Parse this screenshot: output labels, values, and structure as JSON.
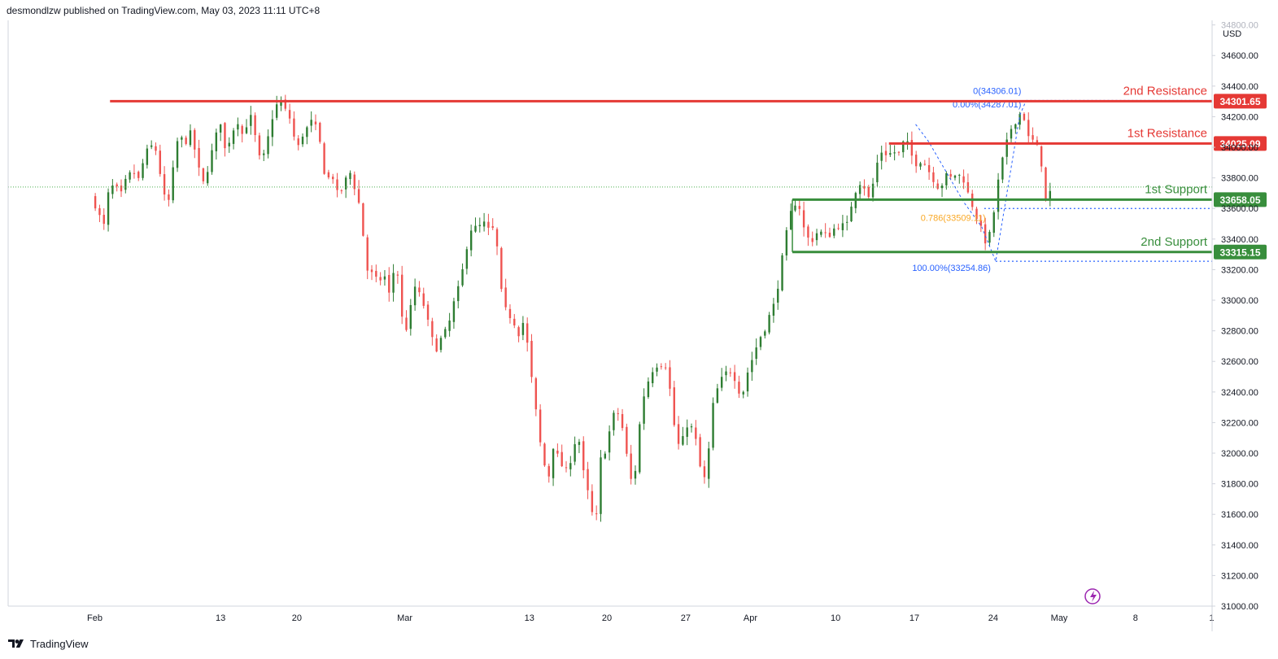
{
  "header": {
    "text": "desmondlzw published on TradingView.com, May 03, 2023 11:11 UTC+8"
  },
  "footer": {
    "brand": "TradingView"
  },
  "colors": {
    "up": "#2e7d32",
    "down": "#ef5350",
    "resistance": "#e53935",
    "support": "#388e3c",
    "fib": "#2962ff",
    "fib_mid": "#f9a825",
    "grid_dot": "#4caf50",
    "axis": "#131722"
  },
  "chart_data": {
    "type": "candlestick",
    "currency": "USD",
    "y_ticks": [
      31000,
      31200,
      31400,
      31600,
      31800,
      32000,
      32200,
      32400,
      32600,
      32800,
      33000,
      33200,
      33400,
      33600,
      33800,
      34000,
      34200,
      34400,
      34600,
      34800
    ],
    "ylim": [
      31000,
      34830
    ],
    "x_ticks": [
      "Feb",
      "13",
      "20",
      "Mar",
      "13",
      "20",
      "27",
      "Apr",
      "10",
      "17",
      "24",
      "May",
      "8",
      "1"
    ],
    "levels": [
      {
        "label": "2nd Resistance",
        "value": 34301.65,
        "price_label": "34301.65",
        "kind": "resistance"
      },
      {
        "label": "1st Resistance",
        "value": 34025.09,
        "price_label": "34025.09",
        "kind": "resistance"
      },
      {
        "label": "1st Support",
        "value": 33658.05,
        "price_label": "33658.05",
        "kind": "support"
      },
      {
        "label": "2nd Support",
        "value": 33315.15,
        "price_label": "33315.15",
        "kind": "support"
      }
    ],
    "fib": [
      {
        "label": "0(34306.01)",
        "value": 34306.01
      },
      {
        "label": "0.00%(34287.01)",
        "value": 34287.01
      },
      {
        "label": "0.786(33509.11)",
        "value": 33509.11
      },
      {
        "label": "100.00%(33254.86)",
        "value": 33254.86
      }
    ],
    "current_price": 33740,
    "points": [
      [
        -0.3,
        33670
      ],
      [
        0.2,
        33590
      ],
      [
        0.7,
        33480
      ],
      [
        1.1,
        33720
      ],
      [
        1.6,
        33760
      ],
      [
        2.0,
        33680
      ],
      [
        2.5,
        33800
      ],
      [
        3.0,
        33850
      ],
      [
        3.4,
        33780
      ],
      [
        3.9,
        33930
      ],
      [
        4.3,
        34020
      ],
      [
        4.8,
        33980
      ],
      [
        5.3,
        33760
      ],
      [
        5.7,
        33580
      ],
      [
        6.2,
        33880
      ],
      [
        6.6,
        34090
      ],
      [
        7.1,
        34020
      ],
      [
        7.6,
        34110
      ],
      [
        8.0,
        33920
      ],
      [
        8.5,
        33760
      ],
      [
        9.0,
        33880
      ],
      [
        9.4,
        34050
      ],
      [
        9.9,
        34160
      ],
      [
        10.3,
        33960
      ],
      [
        10.8,
        34100
      ],
      [
        11.3,
        34170
      ],
      [
        11.7,
        34060
      ],
      [
        12.2,
        34230
      ],
      [
        12.6,
        34080
      ],
      [
        13.1,
        33880
      ],
      [
        13.6,
        34050
      ],
      [
        14.0,
        34200
      ],
      [
        14.5,
        34320
      ],
      [
        14.9,
        34260
      ],
      [
        15.4,
        34180
      ],
      [
        15.9,
        33980
      ],
      [
        16.3,
        34070
      ],
      [
        16.8,
        34140
      ],
      [
        17.2,
        34190
      ],
      [
        17.7,
        34040
      ],
      [
        18.2,
        33760
      ],
      [
        18.6,
        33840
      ],
      [
        19.1,
        33700
      ],
      [
        19.5,
        33720
      ],
      [
        20.0,
        33860
      ],
      [
        20.5,
        33720
      ],
      [
        20.9,
        33600
      ],
      [
        21.4,
        33200
      ],
      [
        21.9,
        33170
      ],
      [
        22.3,
        33120
      ],
      [
        22.8,
        33160
      ],
      [
        23.2,
        33030
      ],
      [
        23.7,
        33280
      ],
      [
        24.2,
        32870
      ],
      [
        24.6,
        32800
      ],
      [
        25.1,
        33100
      ],
      [
        25.5,
        33050
      ],
      [
        26.0,
        32940
      ],
      [
        26.5,
        32760
      ],
      [
        26.9,
        32680
      ],
      [
        27.4,
        32780
      ],
      [
        27.8,
        32820
      ],
      [
        28.3,
        33000
      ],
      [
        28.8,
        33130
      ],
      [
        29.2,
        33320
      ],
      [
        29.7,
        33490
      ],
      [
        30.1,
        33470
      ],
      [
        30.6,
        33510
      ],
      [
        31.1,
        33450
      ],
      [
        31.5,
        33480
      ],
      [
        32.0,
        33060
      ],
      [
        32.4,
        32920
      ],
      [
        32.9,
        32870
      ],
      [
        33.4,
        32770
      ],
      [
        33.8,
        32880
      ],
      [
        34.3,
        32540
      ],
      [
        34.7,
        32290
      ],
      [
        35.2,
        31980
      ],
      [
        35.7,
        31830
      ],
      [
        36.1,
        32050
      ],
      [
        36.6,
        31950
      ],
      [
        37.0,
        31870
      ],
      [
        37.5,
        31960
      ],
      [
        38.0,
        32150
      ],
      [
        38.4,
        31900
      ],
      [
        38.9,
        31710
      ],
      [
        39.4,
        31500
      ],
      [
        39.8,
        31960
      ],
      [
        40.3,
        32030
      ],
      [
        40.7,
        32250
      ],
      [
        41.2,
        32260
      ],
      [
        41.7,
        32110
      ],
      [
        42.1,
        31810
      ],
      [
        42.6,
        31900
      ],
      [
        43.0,
        32310
      ],
      [
        43.5,
        32460
      ],
      [
        44.0,
        32560
      ],
      [
        44.4,
        32580
      ],
      [
        44.9,
        32580
      ],
      [
        45.3,
        32400
      ],
      [
        45.8,
        32040
      ],
      [
        46.3,
        32100
      ],
      [
        46.7,
        32200
      ],
      [
        47.2,
        32140
      ],
      [
        47.6,
        31920
      ],
      [
        48.1,
        31810
      ],
      [
        48.6,
        32300
      ],
      [
        49.0,
        32420
      ],
      [
        49.5,
        32520
      ],
      [
        50.0,
        32540
      ],
      [
        50.4,
        32480
      ],
      [
        50.9,
        32350
      ],
      [
        51.3,
        32510
      ],
      [
        51.8,
        32630
      ],
      [
        52.3,
        32750
      ],
      [
        52.7,
        32800
      ],
      [
        53.2,
        32930
      ],
      [
        53.6,
        33000
      ],
      [
        54.1,
        33280
      ],
      [
        54.6,
        33520
      ],
      [
        55.0,
        33640
      ],
      [
        55.5,
        33600
      ],
      [
        55.9,
        33430
      ],
      [
        56.4,
        33380
      ],
      [
        56.9,
        33450
      ],
      [
        57.3,
        33440
      ],
      [
        57.8,
        33420
      ],
      [
        58.2,
        33470
      ],
      [
        58.7,
        33490
      ],
      [
        59.2,
        33500
      ],
      [
        59.6,
        33640
      ],
      [
        60.1,
        33770
      ],
      [
        60.5,
        33750
      ],
      [
        61.0,
        33650
      ],
      [
        61.5,
        33880
      ],
      [
        61.9,
        33970
      ],
      [
        62.4,
        33950
      ],
      [
        62.8,
        33970
      ],
      [
        63.3,
        33960
      ],
      [
        63.8,
        34070
      ],
      [
        64.2,
        33960
      ],
      [
        64.7,
        33880
      ],
      [
        65.1,
        33920
      ],
      [
        65.6,
        33850
      ],
      [
        66.1,
        33770
      ],
      [
        66.5,
        33720
      ],
      [
        67.0,
        33820
      ],
      [
        67.4,
        33800
      ],
      [
        67.9,
        33830
      ],
      [
        68.4,
        33780
      ],
      [
        68.8,
        33680
      ],
      [
        69.3,
        33560
      ],
      [
        69.8,
        33460
      ],
      [
        70.2,
        33350
      ],
      [
        70.7,
        33540
      ],
      [
        71.1,
        33780
      ],
      [
        71.6,
        33990
      ],
      [
        72.1,
        34120
      ],
      [
        72.5,
        34170
      ],
      [
        73.0,
        34250
      ],
      [
        73.4,
        34070
      ],
      [
        73.9,
        34040
      ],
      [
        74.4,
        33970
      ],
      [
        74.8,
        33640
      ],
      [
        75.3,
        33730
      ]
    ]
  }
}
